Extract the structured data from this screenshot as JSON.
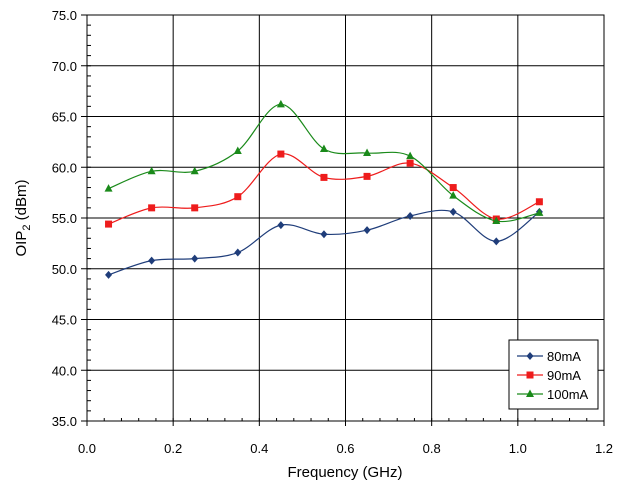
{
  "chart_data": {
    "type": "line",
    "title": "",
    "xlabel": "Frequency (GHz)",
    "ylabel_main": "OIP",
    "ylabel_sub": "2",
    "ylabel_tail": " (dBm)",
    "xlim": [
      0.0,
      1.2
    ],
    "ylim": [
      35.0,
      75.0
    ],
    "x_major": 0.2,
    "y_major": 5.0,
    "x_minor": 0.04,
    "y_minor": 1.0,
    "x_tick_labels": [
      "0.0",
      "0.2",
      "0.4",
      "0.6",
      "0.8",
      "1.0",
      "1.2"
    ],
    "y_tick_labels": [
      "35.0",
      "40.0",
      "45.0",
      "50.0",
      "55.0",
      "60.0",
      "65.0",
      "70.0",
      "75.0"
    ],
    "grid": true,
    "legend_position": "bottom-right",
    "x": [
      0.05,
      0.15,
      0.25,
      0.35,
      0.45,
      0.55,
      0.65,
      0.75,
      0.85,
      0.95,
      1.05
    ],
    "series": [
      {
        "name": "80mA",
        "color": "#1f3d7a",
        "marker": "diamond",
        "values": [
          49.4,
          50.8,
          51.0,
          51.6,
          54.3,
          53.4,
          53.8,
          55.2,
          55.6,
          52.7,
          55.6
        ]
      },
      {
        "name": "90mA",
        "color": "#ee1c1c",
        "marker": "square",
        "values": [
          54.4,
          56.0,
          56.0,
          57.1,
          61.3,
          59.0,
          59.1,
          60.4,
          58.0,
          54.9,
          56.6
        ]
      },
      {
        "name": "100mA",
        "color": "#1a8a1a",
        "marker": "triangle",
        "values": [
          57.9,
          59.6,
          59.6,
          61.6,
          66.2,
          61.8,
          61.4,
          61.1,
          57.2,
          54.7,
          55.5
        ]
      }
    ]
  }
}
